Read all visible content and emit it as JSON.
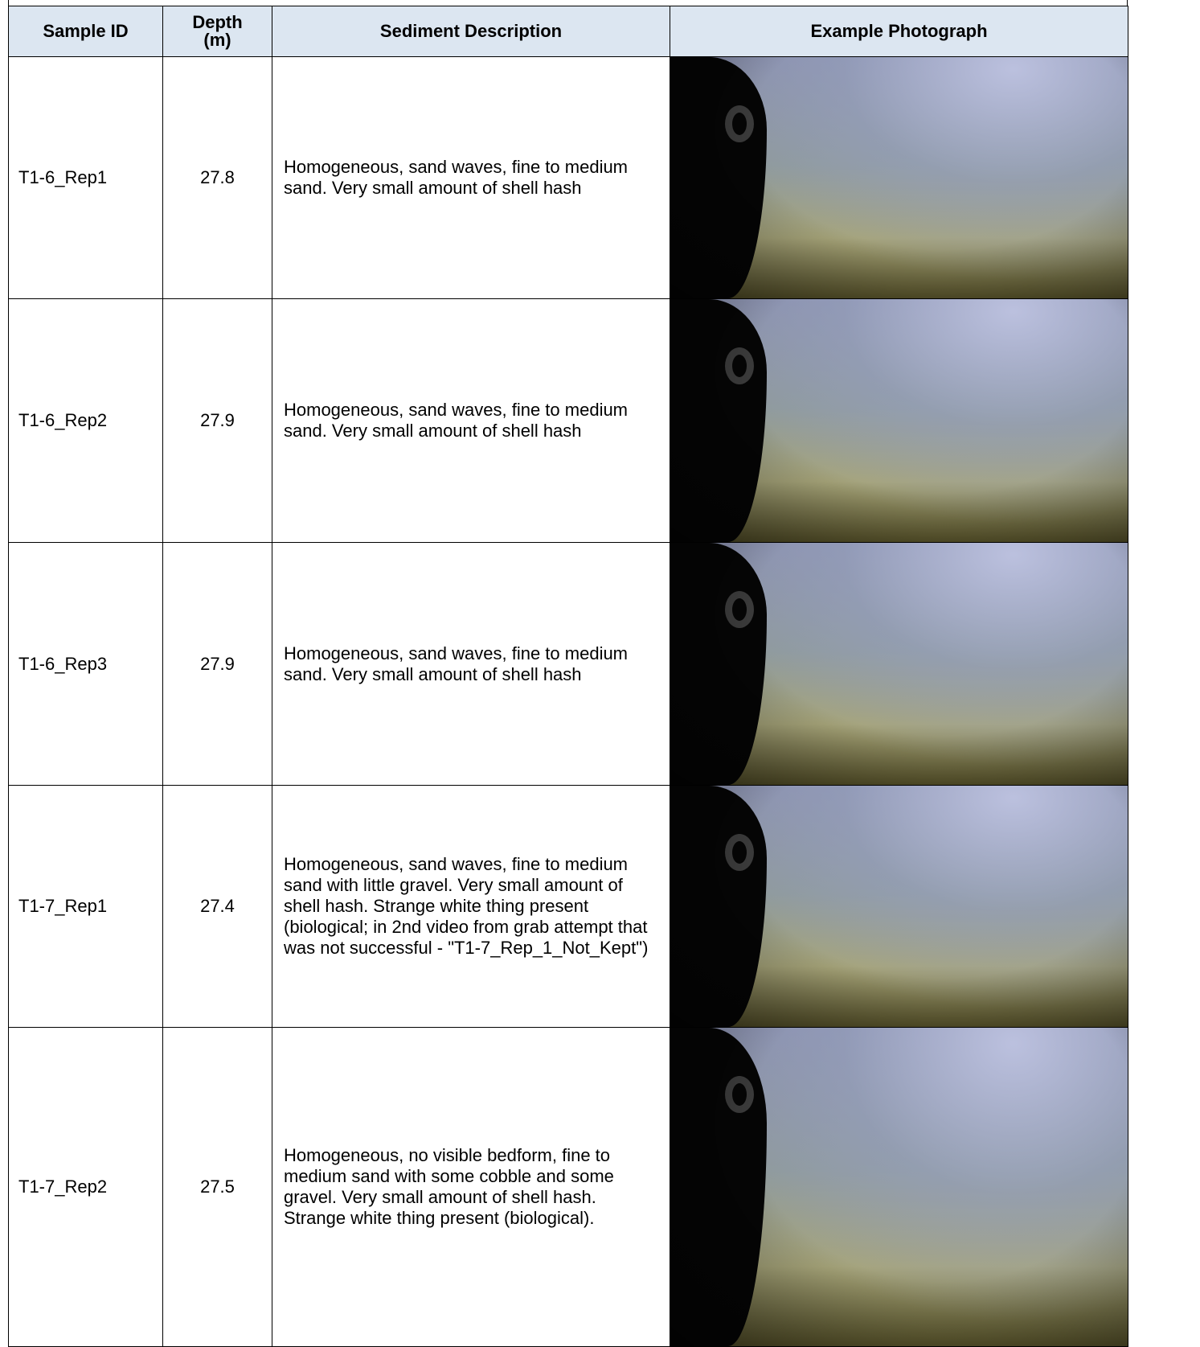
{
  "table": {
    "headers": [
      "Sample ID",
      "Depth (m)",
      "Sediment Description",
      "Example Photograph"
    ],
    "rows": [
      [
        "T1-6_Rep1",
        27.8,
        "Homogeneous, sand waves, fine to medium sand. Very small amount of shell hash"
      ],
      [
        "T1-6_Rep2",
        27.9,
        "Homogeneous, sand waves, fine to medium sand. Very small amount of shell hash"
      ],
      [
        "T1-6_Rep3",
        27.9,
        "Homogeneous, sand waves, fine to medium sand. Very small amount of shell hash"
      ],
      [
        "T1-7_Rep1",
        27.4,
        "Homogeneous, sand waves, fine to medium sand with little gravel. Very small amount of shell hash. Strange white thing present (biological; in 2nd video from grab attempt that was not successful - \"T1-7_Rep_1_Not_Kept\")"
      ],
      [
        "T1-7_Rep2",
        27.5,
        "Homogeneous, no visible bedform, fine to medium sand with some cobble and some gravel. Very small amount of shell hash. Strange white thing present (biological)."
      ]
    ]
  }
}
